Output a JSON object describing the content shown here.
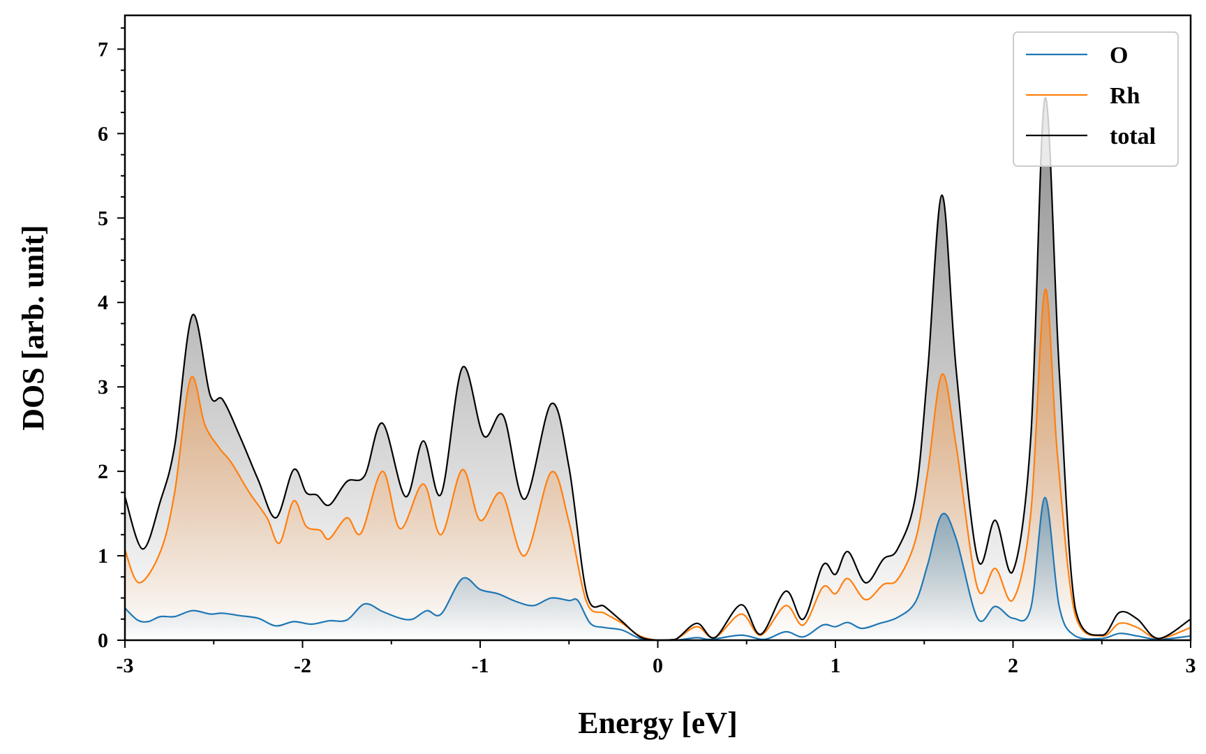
{
  "chart_data": {
    "type": "line",
    "title": "",
    "xlabel": "Energy [eV]",
    "ylabel": "DOS [arb. unit]",
    "xlim": [
      -3,
      3
    ],
    "ylim": [
      0,
      7.4
    ],
    "xticks": [
      -3,
      -2,
      -1,
      0,
      1,
      2,
      3
    ],
    "yticks": [
      0,
      1,
      2,
      3,
      4,
      5,
      6,
      7
    ],
    "legend_position": "top-right",
    "grid": false,
    "series": [
      {
        "name": "O",
        "color": "#1f77b4",
        "fill": true,
        "points": [
          [
            -3.0,
            0.38
          ],
          [
            -2.93,
            0.24
          ],
          [
            -2.87,
            0.22
          ],
          [
            -2.8,
            0.28
          ],
          [
            -2.72,
            0.28
          ],
          [
            -2.62,
            0.35
          ],
          [
            -2.52,
            0.31
          ],
          [
            -2.45,
            0.32
          ],
          [
            -2.35,
            0.29
          ],
          [
            -2.25,
            0.26
          ],
          [
            -2.15,
            0.17
          ],
          [
            -2.05,
            0.22
          ],
          [
            -1.95,
            0.19
          ],
          [
            -1.85,
            0.23
          ],
          [
            -1.75,
            0.24
          ],
          [
            -1.65,
            0.43
          ],
          [
            -1.55,
            0.34
          ],
          [
            -1.45,
            0.26
          ],
          [
            -1.38,
            0.25
          ],
          [
            -1.3,
            0.35
          ],
          [
            -1.22,
            0.31
          ],
          [
            -1.1,
            0.73
          ],
          [
            -1.0,
            0.6
          ],
          [
            -0.9,
            0.55
          ],
          [
            -0.8,
            0.46
          ],
          [
            -0.7,
            0.41
          ],
          [
            -0.6,
            0.5
          ],
          [
            -0.5,
            0.47
          ],
          [
            -0.45,
            0.47
          ],
          [
            -0.38,
            0.2
          ],
          [
            -0.3,
            0.15
          ],
          [
            -0.2,
            0.12
          ],
          [
            -0.1,
            0.02
          ],
          [
            0.0,
            0.0
          ],
          [
            0.1,
            0.0
          ],
          [
            0.22,
            0.03
          ],
          [
            0.3,
            0.01
          ],
          [
            0.47,
            0.06
          ],
          [
            0.6,
            0.01
          ],
          [
            0.72,
            0.1
          ],
          [
            0.82,
            0.04
          ],
          [
            0.93,
            0.18
          ],
          [
            1.0,
            0.16
          ],
          [
            1.07,
            0.21
          ],
          [
            1.15,
            0.14
          ],
          [
            1.25,
            0.2
          ],
          [
            1.35,
            0.27
          ],
          [
            1.45,
            0.45
          ],
          [
            1.52,
            0.9
          ],
          [
            1.6,
            1.49
          ],
          [
            1.68,
            1.2
          ],
          [
            1.8,
            0.26
          ],
          [
            1.9,
            0.4
          ],
          [
            2.0,
            0.26
          ],
          [
            2.1,
            0.38
          ],
          [
            2.18,
            1.69
          ],
          [
            2.26,
            0.4
          ],
          [
            2.35,
            0.05
          ],
          [
            2.5,
            0.02
          ],
          [
            2.6,
            0.08
          ],
          [
            2.7,
            0.05
          ],
          [
            2.82,
            0.01
          ],
          [
            3.0,
            0.05
          ]
        ]
      },
      {
        "name": "Rh",
        "color": "#ff7f0e",
        "fill": true,
        "points": [
          [
            -3.0,
            1.07
          ],
          [
            -2.92,
            0.68
          ],
          [
            -2.8,
            1.05
          ],
          [
            -2.72,
            1.75
          ],
          [
            -2.63,
            3.1
          ],
          [
            -2.55,
            2.55
          ],
          [
            -2.47,
            2.28
          ],
          [
            -2.4,
            2.1
          ],
          [
            -2.3,
            1.75
          ],
          [
            -2.2,
            1.45
          ],
          [
            -2.13,
            1.15
          ],
          [
            -2.05,
            1.65
          ],
          [
            -1.98,
            1.35
          ],
          [
            -1.9,
            1.3
          ],
          [
            -1.85,
            1.2
          ],
          [
            -1.75,
            1.45
          ],
          [
            -1.67,
            1.27
          ],
          [
            -1.55,
            2.0
          ],
          [
            -1.45,
            1.32
          ],
          [
            -1.32,
            1.85
          ],
          [
            -1.22,
            1.25
          ],
          [
            -1.1,
            2.02
          ],
          [
            -1.0,
            1.42
          ],
          [
            -0.88,
            1.74
          ],
          [
            -0.75,
            1.0
          ],
          [
            -0.6,
            1.99
          ],
          [
            -0.5,
            1.4
          ],
          [
            -0.4,
            0.45
          ],
          [
            -0.3,
            0.32
          ],
          [
            -0.2,
            0.2
          ],
          [
            -0.1,
            0.05
          ],
          [
            0.0,
            0.0
          ],
          [
            0.1,
            0.01
          ],
          [
            0.22,
            0.16
          ],
          [
            0.32,
            0.03
          ],
          [
            0.47,
            0.31
          ],
          [
            0.58,
            0.06
          ],
          [
            0.72,
            0.41
          ],
          [
            0.82,
            0.18
          ],
          [
            0.93,
            0.63
          ],
          [
            1.0,
            0.55
          ],
          [
            1.07,
            0.73
          ],
          [
            1.17,
            0.48
          ],
          [
            1.27,
            0.66
          ],
          [
            1.35,
            0.72
          ],
          [
            1.45,
            1.18
          ],
          [
            1.52,
            2.0
          ],
          [
            1.6,
            3.15
          ],
          [
            1.68,
            2.3
          ],
          [
            1.8,
            0.62
          ],
          [
            1.9,
            0.85
          ],
          [
            2.0,
            0.48
          ],
          [
            2.1,
            1.5
          ],
          [
            2.18,
            4.15
          ],
          [
            2.25,
            2.2
          ],
          [
            2.35,
            0.3
          ],
          [
            2.5,
            0.05
          ],
          [
            2.6,
            0.2
          ],
          [
            2.7,
            0.15
          ],
          [
            2.82,
            0.02
          ],
          [
            3.0,
            0.15
          ]
        ]
      },
      {
        "name": "total",
        "color": "#000000",
        "fill": true,
        "points": [
          [
            -3.0,
            1.7
          ],
          [
            -2.9,
            1.08
          ],
          [
            -2.8,
            1.65
          ],
          [
            -2.72,
            2.3
          ],
          [
            -2.62,
            3.85
          ],
          [
            -2.52,
            2.9
          ],
          [
            -2.45,
            2.85
          ],
          [
            -2.35,
            2.4
          ],
          [
            -2.25,
            1.9
          ],
          [
            -2.15,
            1.45
          ],
          [
            -2.05,
            2.02
          ],
          [
            -1.98,
            1.75
          ],
          [
            -1.92,
            1.72
          ],
          [
            -1.85,
            1.6
          ],
          [
            -1.75,
            1.88
          ],
          [
            -1.65,
            1.95
          ],
          [
            -1.55,
            2.57
          ],
          [
            -1.42,
            1.7
          ],
          [
            -1.32,
            2.36
          ],
          [
            -1.22,
            1.73
          ],
          [
            -1.1,
            3.23
          ],
          [
            -0.98,
            2.42
          ],
          [
            -0.87,
            2.66
          ],
          [
            -0.75,
            1.67
          ],
          [
            -0.6,
            2.8
          ],
          [
            -0.5,
            2.05
          ],
          [
            -0.4,
            0.55
          ],
          [
            -0.3,
            0.4
          ],
          [
            -0.2,
            0.22
          ],
          [
            -0.1,
            0.04
          ],
          [
            0.0,
            0.0
          ],
          [
            0.1,
            0.01
          ],
          [
            0.22,
            0.2
          ],
          [
            0.32,
            0.03
          ],
          [
            0.47,
            0.42
          ],
          [
            0.58,
            0.07
          ],
          [
            0.72,
            0.58
          ],
          [
            0.82,
            0.25
          ],
          [
            0.93,
            0.89
          ],
          [
            1.0,
            0.78
          ],
          [
            1.07,
            1.05
          ],
          [
            1.17,
            0.68
          ],
          [
            1.27,
            0.96
          ],
          [
            1.35,
            1.08
          ],
          [
            1.45,
            1.7
          ],
          [
            1.52,
            3.2
          ],
          [
            1.6,
            5.27
          ],
          [
            1.68,
            3.2
          ],
          [
            1.8,
            0.97
          ],
          [
            1.9,
            1.42
          ],
          [
            2.0,
            0.82
          ],
          [
            2.1,
            2.4
          ],
          [
            2.18,
            6.42
          ],
          [
            2.26,
            3.2
          ],
          [
            2.35,
            0.38
          ],
          [
            2.5,
            0.06
          ],
          [
            2.6,
            0.33
          ],
          [
            2.7,
            0.25
          ],
          [
            2.82,
            0.02
          ],
          [
            3.0,
            0.25
          ]
        ]
      }
    ]
  }
}
